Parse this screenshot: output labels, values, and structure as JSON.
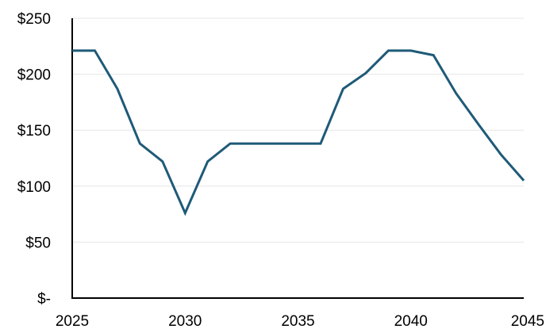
{
  "chart_data": {
    "type": "line",
    "title": "",
    "xlabel": "",
    "ylabel": "",
    "x": [
      2025,
      2026,
      2027,
      2028,
      2029,
      2030,
      2031,
      2032,
      2033,
      2034,
      2035,
      2036,
      2037,
      2038,
      2039,
      2040,
      2041,
      2042,
      2043,
      2044,
      2045
    ],
    "series": [
      {
        "values": [
          221,
          221,
          187,
          138,
          122,
          76,
          122,
          138,
          138,
          138,
          138,
          138,
          187,
          201,
          221,
          221,
          217,
          183,
          155,
          128,
          105
        ]
      }
    ],
    "xlim": [
      2025,
      2045
    ],
    "ylim": [
      0,
      250
    ],
    "x_ticks": [
      2025,
      2030,
      2035,
      2040,
      2045
    ],
    "x_tick_labels": [
      "2025",
      "2030",
      "2035",
      "2040",
      "2045"
    ],
    "y_ticks": [
      0,
      50,
      100,
      150,
      200,
      250
    ],
    "y_tick_labels": [
      "$-",
      "$50",
      "$100",
      "$150",
      "$200",
      "$250"
    ],
    "grid": {
      "horizontal": true,
      "vertical": false
    },
    "legend": "none",
    "colors": {
      "line": "#1f5a78",
      "grid": "#e6e6e6",
      "axis": "#000000"
    }
  }
}
